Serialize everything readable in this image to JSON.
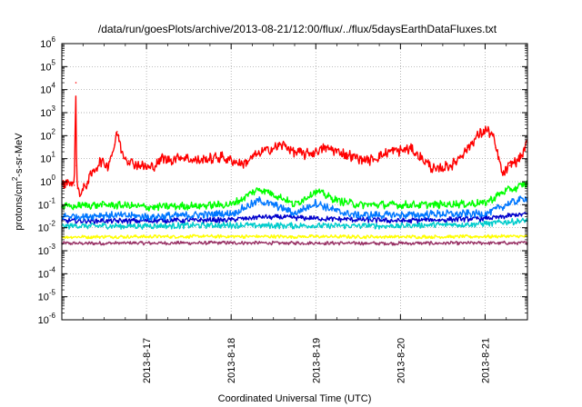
{
  "chart_data": {
    "type": "line",
    "title": "/data/run/goesPlots/archive/2013-08-21/12:00/flux/../flux/5daysEarthDataFluxes.txt",
    "xlabel": "Coordinated Universal Time (UTC)",
    "ylabel": "protons/cm2-s-sr-MeV",
    "ylabel_parts": {
      "base": "protons/cm",
      "sup": "2",
      "rest": "-s-sr-MeV"
    },
    "yscale": "log",
    "ylim": [
      1e-06,
      1000000.0
    ],
    "ytick_exponents": [
      -6,
      -5,
      -4,
      -3,
      -2,
      -1,
      0,
      1,
      2,
      3,
      4,
      5,
      6
    ],
    "ytick_base": "10",
    "xlim": [
      "2013-08-16 00:00",
      "2013-08-21 12:00"
    ],
    "xticks": [
      "2013-8-17",
      "2013-8-18",
      "2013-8-19",
      "2013-8-20",
      "2013-8-21"
    ],
    "grid": true,
    "series": [
      {
        "color": "#ff0000",
        "noise": 0.25,
        "x": [
          "2013-08-16 00:00",
          "2013-08-16 02:00",
          "2013-08-16 03:30",
          "2013-08-16 04:00",
          "2013-08-16 04:10",
          "2013-08-16 04:30",
          "2013-08-16 05:30",
          "2013-08-16 07:00",
          "2013-08-16 09:00",
          "2013-08-16 11:00",
          "2013-08-16 13:00",
          "2013-08-16 15:00",
          "2013-08-16 15:40",
          "2013-08-16 17:00",
          "2013-08-16 19:00",
          "2013-08-16 22:00",
          "2013-08-17 01:00",
          "2013-08-17 03:00",
          "2013-08-17 04:30",
          "2013-08-17 06:00",
          "2013-08-17 09:00",
          "2013-08-17 15:00",
          "2013-08-17 21:00",
          "2013-08-18 03:00",
          "2013-08-18 09:00",
          "2013-08-18 15:00",
          "2013-08-18 18:00",
          "2013-08-18 21:00",
          "2013-08-19 03:00",
          "2013-08-19 09:00",
          "2013-08-19 15:00",
          "2013-08-19 21:00",
          "2013-08-20 03:00",
          "2013-08-20 06:00",
          "2013-08-20 10:00",
          "2013-08-20 15:00",
          "2013-08-20 19:00",
          "2013-08-20 22:00",
          "2013-08-21 00:00",
          "2013-08-21 02:00",
          "2013-08-21 03:00",
          "2013-08-21 05:00",
          "2013-08-21 07:00",
          "2013-08-21 10:00",
          "2013-08-21 12:00"
        ],
        "y": [
          0.8,
          1.0,
          0.7,
          20000,
          5,
          0.5,
          0.3,
          0.8,
          3,
          8,
          5,
          40,
          150,
          20,
          8,
          5,
          4,
          6,
          12,
          8,
          12,
          8,
          12,
          6,
          20,
          40,
          20,
          15,
          30,
          15,
          8,
          20,
          25,
          10,
          3,
          6,
          30,
          100,
          180,
          120,
          30,
          2,
          5,
          10,
          50
        ]
      },
      {
        "color": "#00ff00",
        "noise": 0.18,
        "x": [
          "2013-08-16 00:00",
          "2013-08-16 12:00",
          "2013-08-17 00:00",
          "2013-08-17 12:00",
          "2013-08-18 00:00",
          "2013-08-18 08:00",
          "2013-08-18 12:00",
          "2013-08-18 18:00",
          "2013-08-19 00:00",
          "2013-08-19 06:00",
          "2013-08-19 12:00",
          "2013-08-20 00:00",
          "2013-08-20 12:00",
          "2013-08-21 00:00",
          "2013-08-21 06:00",
          "2013-08-21 12:00"
        ],
        "y": [
          0.08,
          0.1,
          0.08,
          0.09,
          0.1,
          0.5,
          0.3,
          0.1,
          0.4,
          0.15,
          0.1,
          0.1,
          0.1,
          0.12,
          0.4,
          0.8
        ]
      },
      {
        "color": "#0077ff",
        "noise": 0.18,
        "x": [
          "2013-08-16 00:00",
          "2013-08-16 12:00",
          "2013-08-17 00:00",
          "2013-08-17 12:00",
          "2013-08-18 00:00",
          "2013-08-18 08:00",
          "2013-08-18 12:00",
          "2013-08-18 18:00",
          "2013-08-19 00:00",
          "2013-08-19 06:00",
          "2013-08-19 12:00",
          "2013-08-20 00:00",
          "2013-08-20 12:00",
          "2013-08-21 00:00",
          "2013-08-21 06:00",
          "2013-08-21 12:00"
        ],
        "y": [
          0.03,
          0.035,
          0.03,
          0.035,
          0.04,
          0.15,
          0.1,
          0.04,
          0.12,
          0.05,
          0.035,
          0.035,
          0.04,
          0.04,
          0.1,
          0.2
        ]
      },
      {
        "color": "#00cccc",
        "noise": 0.14,
        "x": [
          "2013-08-16 00:00",
          "2013-08-17 00:00",
          "2013-08-18 00:00",
          "2013-08-19 00:00",
          "2013-08-20 00:00",
          "2013-08-21 00:00",
          "2013-08-21 12:00"
        ],
        "y": [
          0.012,
          0.012,
          0.013,
          0.012,
          0.012,
          0.015,
          0.02
        ]
      },
      {
        "color": "#0000cc",
        "noise": 0.12,
        "x": [
          "2013-08-16 00:00",
          "2013-08-17 00:00",
          "2013-08-18 00:00",
          "2013-08-18 08:00",
          "2013-08-19 00:00",
          "2013-08-20 00:00",
          "2013-08-21 00:00",
          "2013-08-21 12:00"
        ],
        "y": [
          0.02,
          0.02,
          0.022,
          0.03,
          0.025,
          0.02,
          0.025,
          0.04
        ]
      },
      {
        "color": "#ffff00",
        "noise": 0.08,
        "x": [
          "2013-08-16 00:00",
          "2013-08-18 00:00",
          "2013-08-20 00:00",
          "2013-08-21 12:00"
        ],
        "y": [
          0.004,
          0.0042,
          0.004,
          0.0042
        ]
      },
      {
        "color": "#993366",
        "noise": 0.08,
        "x": [
          "2013-08-16 00:00",
          "2013-08-18 00:00",
          "2013-08-20 00:00",
          "2013-08-21 12:00"
        ],
        "y": [
          0.0021,
          0.0022,
          0.0021,
          0.0022
        ]
      }
    ]
  }
}
